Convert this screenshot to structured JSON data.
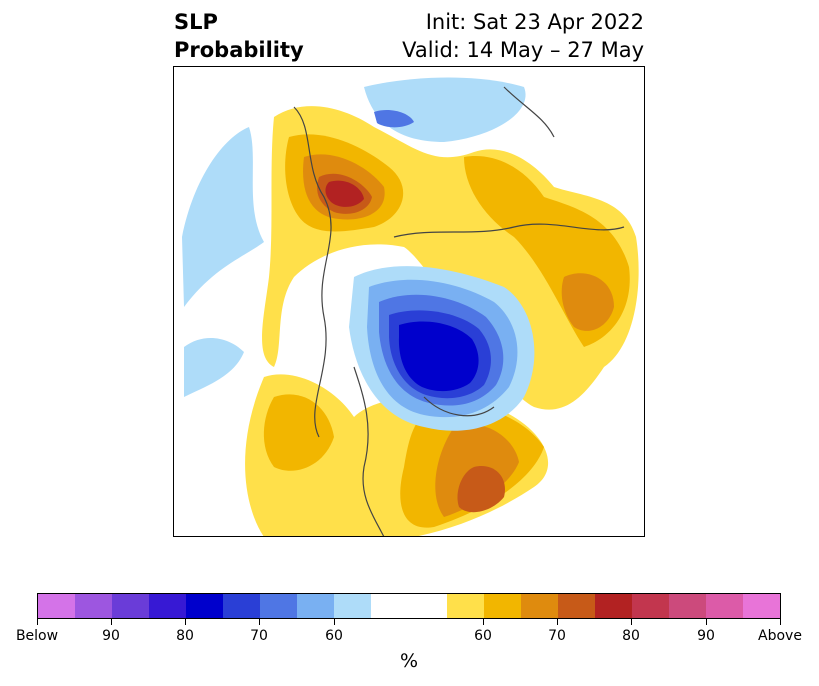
{
  "title": {
    "left_line1": "SLP",
    "left_line2": "Probability",
    "right_line1": "Init: Sat 23 Apr 2022",
    "right_line2": "Valid: 14 May – 27 May"
  },
  "colors": {
    "below": [
      "#d473e8",
      "#9d56e0",
      "#6a3cd8",
      "#3719d4",
      "#0000cc",
      "#2a3fd6",
      "#4f76e4",
      "#79b0f2",
      "#aedcf9"
    ],
    "neutral": "#ffffff",
    "above": [
      "#ffe04a",
      "#f2b600",
      "#df8b0e",
      "#c75a18",
      "#b22222",
      "#c2364e",
      "#cc4a7c",
      "#dc5ba8",
      "#e874d8"
    ],
    "coastline": "#444444"
  },
  "colorbar": {
    "tick_labels": [
      "Below",
      "90",
      "80",
      "70",
      "60",
      "60",
      "70",
      "80",
      "90",
      "Above"
    ],
    "unit": "%"
  }
}
